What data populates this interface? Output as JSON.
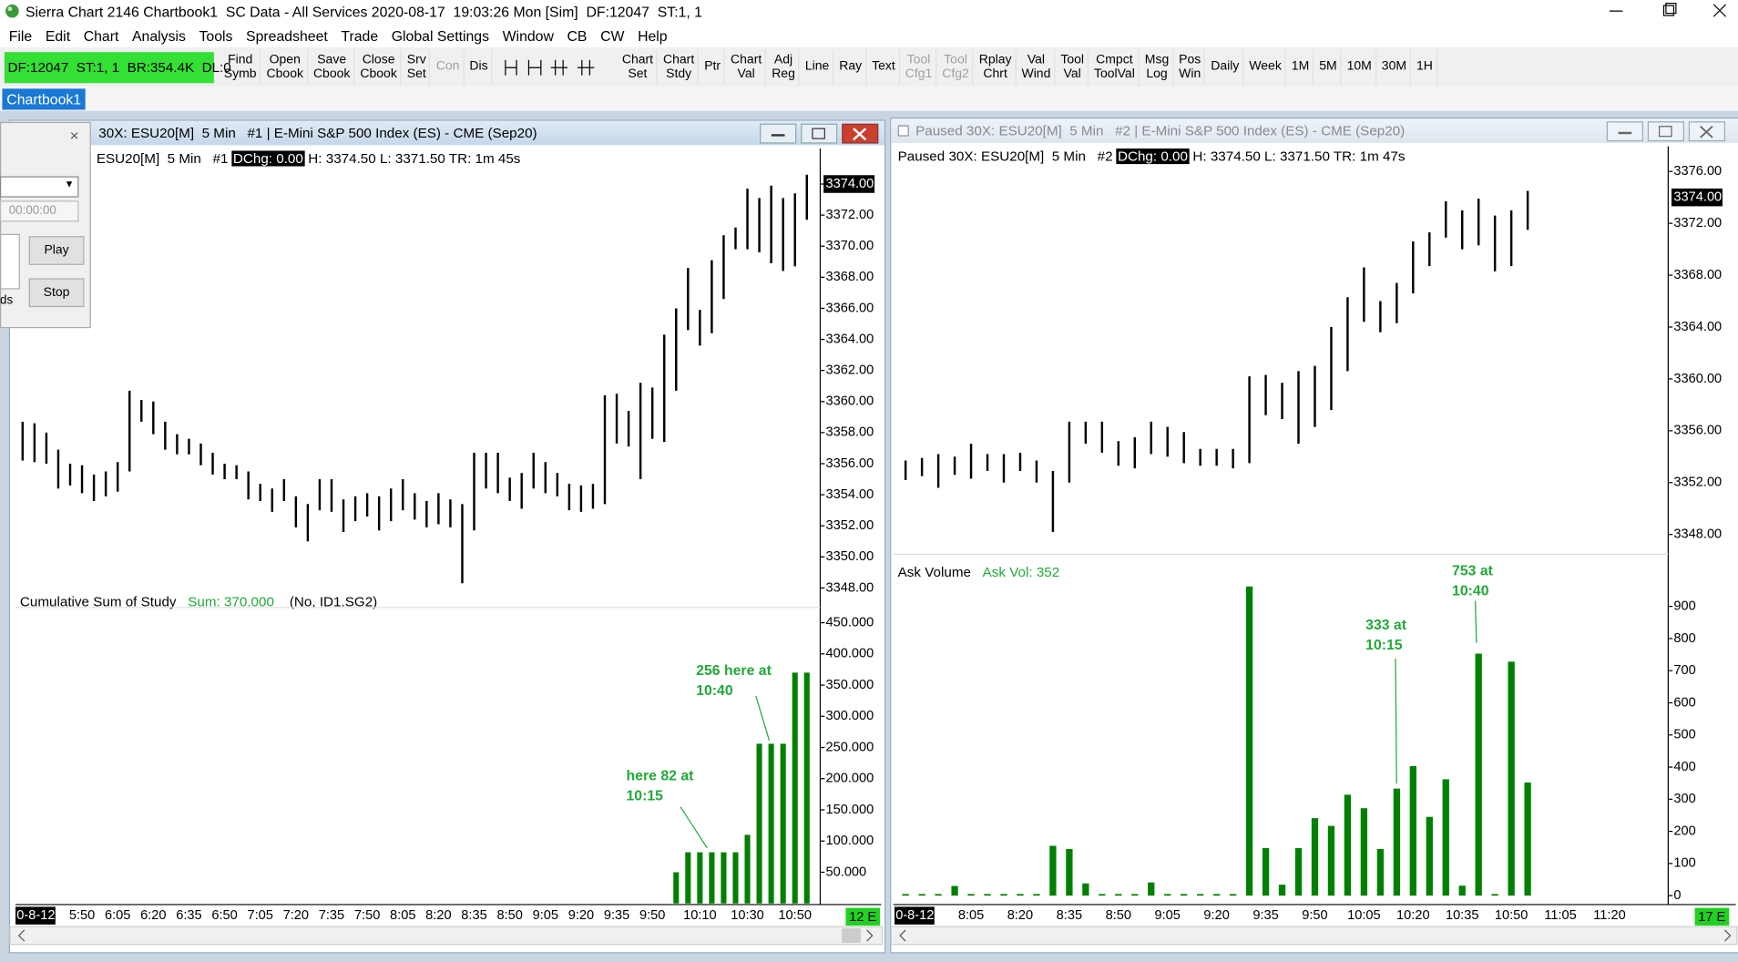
{
  "window": {
    "title": "Sierra Chart 2146 Chartbook1  SC Data - All Services 2020-08-17  19:03:26 Mon [Sim]  DF:12047  ST:1, 1"
  },
  "menu": [
    "File",
    "Edit",
    "Chart",
    "Analysis",
    "Tools",
    "Spreadsheet",
    "Trade",
    "Global Settings",
    "Window",
    "CB",
    "CW",
    "Help"
  ],
  "toolbar": {
    "status": "DF:12047  ST:1, 1  BR:354.4K  DL:0",
    "groups": [
      [
        {
          "lines": [
            "Find",
            "Symb"
          ]
        },
        {
          "lines": [
            "Open",
            "Cbook"
          ]
        },
        {
          "lines": [
            "Save",
            "Cbook"
          ]
        },
        {
          "lines": [
            "Close",
            "Cbook"
          ]
        },
        {
          "lines": [
            "Srv",
            "Set"
          ]
        },
        {
          "lines": [
            "Con"
          ],
          "disabled": true
        },
        {
          "lines": [
            "Dis"
          ]
        }
      ],
      [
        {
          "lines": [
            "Chart",
            "Set"
          ]
        },
        {
          "lines": [
            "Chart",
            "Stdy"
          ]
        },
        {
          "lines": [
            "Ptr"
          ]
        },
        {
          "lines": [
            "Chart",
            "Val"
          ]
        },
        {
          "lines": [
            "Adj",
            "Reg"
          ]
        },
        {
          "lines": [
            "Line"
          ]
        },
        {
          "lines": [
            "Ray"
          ]
        },
        {
          "lines": [
            "Text"
          ]
        },
        {
          "lines": [
            "Tool",
            "Cfg1"
          ],
          "disabled": true
        },
        {
          "lines": [
            "Tool",
            "Cfg2"
          ],
          "disabled": true
        },
        {
          "lines": [
            "Rplay",
            "Chrt"
          ]
        },
        {
          "lines": [
            "Val",
            "Wind"
          ]
        },
        {
          "lines": [
            "Tool",
            "Val"
          ]
        },
        {
          "lines": [
            "Cmpct",
            "ToolVal"
          ]
        },
        {
          "lines": [
            "Msg",
            "Log"
          ]
        },
        {
          "lines": [
            "Pos",
            "Win"
          ]
        },
        {
          "lines": [
            "Daily"
          ]
        },
        {
          "lines": [
            "Week"
          ]
        },
        {
          "lines": [
            "1M"
          ]
        },
        {
          "lines": [
            "5M"
          ]
        },
        {
          "lines": [
            "10M"
          ]
        },
        {
          "lines": [
            "30M"
          ]
        },
        {
          "lines": [
            "1H"
          ]
        }
      ]
    ]
  },
  "tab": "Chartbook1",
  "replay_dialog": {
    "time": "00:00:00",
    "play": "Play",
    "stop": "Stop",
    "fragment": "ds"
  },
  "charts": [
    {
      "title": "30X: ESU20[M]  5 Min   #1 | E-Mini S&P 500 Index (ES) - CME (Sep20)",
      "info": {
        "symbol": "ESU20[M]  5 Min   #1",
        "dchg": "DChg: 0.00",
        "rest": "H: 3374.50 L: 3371.50 TR: 1m 45s"
      },
      "bar_counter": "12 E",
      "categories": [
        "0-8-12",
        null,
        null,
        null,
        null,
        "5:50",
        null,
        null,
        "6:05",
        null,
        null,
        "6:20",
        null,
        null,
        "6:35",
        null,
        null,
        "6:50",
        null,
        null,
        "7:05",
        null,
        null,
        "7:20",
        null,
        null,
        "7:35",
        null,
        null,
        "7:50",
        null,
        null,
        "8:05",
        null,
        null,
        "8:20",
        null,
        null,
        "8:35",
        null,
        null,
        "8:50",
        null,
        null,
        "9:05",
        null,
        null,
        "9:20",
        null,
        null,
        "9:35",
        null,
        null,
        "9:50",
        null,
        null,
        null,
        "10:10",
        null,
        null,
        null,
        "10:30",
        null,
        null,
        null,
        "10:50",
        null
      ],
      "price": {
        "type": "ohlc",
        "color": "#000000",
        "highs": [
          3358.7,
          3358.6,
          3358.0,
          3356.9,
          3356.0,
          3355.9,
          3355.3,
          3355.5,
          3356.1,
          3360.7,
          3360.1,
          3360.0,
          3358.7,
          3357.9,
          3357.6,
          3357.3,
          3356.7,
          3356.0,
          3355.9,
          3355.5,
          3354.7,
          3354.4,
          3355.0,
          3353.9,
          3353.4,
          3355.0,
          3355.0,
          3353.7,
          3353.9,
          3354.1,
          3353.9,
          3354.4,
          3355.0,
          3354.1,
          3353.6,
          3354.1,
          3353.7,
          3353.4,
          3356.7,
          3356.7,
          3356.7,
          3355.1,
          3355.4,
          3356.7,
          3356.1,
          3355.4,
          3354.7,
          3354.6,
          3354.7,
          3360.4,
          3360.5,
          3359.4,
          3361.2,
          3360.9,
          3364.3,
          3366.0,
          3368.6,
          3365.9,
          3369.1,
          3370.7,
          3371.2,
          3373.7,
          3373.1,
          3373.9,
          3373.1,
          3373.4,
          3374.6
        ],
        "lows": [
          3356.2,
          3356.1,
          3356.0,
          3354.4,
          3354.6,
          3354.1,
          3353.6,
          3353.9,
          3354.2,
          3355.5,
          3358.7,
          3357.9,
          3356.9,
          3356.6,
          3356.6,
          3355.9,
          3355.3,
          3355.0,
          3355.0,
          3353.7,
          3353.6,
          3352.9,
          3353.6,
          3351.9,
          3351.0,
          3353.0,
          3352.9,
          3351.6,
          3352.3,
          3352.6,
          3351.7,
          3352.3,
          3353.0,
          3352.4,
          3351.9,
          3352.1,
          3351.9,
          3348.3,
          3351.7,
          3354.4,
          3354.1,
          3353.6,
          3353.1,
          3354.4,
          3354.1,
          3353.9,
          3353.0,
          3352.9,
          3353.1,
          3353.4,
          3357.3,
          3357.1,
          3355.0,
          3357.6,
          3357.4,
          3360.7,
          3364.6,
          3363.6,
          3364.4,
          3366.6,
          3369.8,
          3369.8,
          3369.6,
          3368.9,
          3368.4,
          3368.7,
          3371.7
        ],
        "ylim": [
          3347.6,
          3375
        ],
        "yticks": [
          {
            "value": 3348,
            "label": "3348.00"
          },
          {
            "value": 3350,
            "label": "3350.00"
          },
          {
            "value": 3352,
            "label": "3352.00"
          },
          {
            "value": 3354,
            "label": "3354.00"
          },
          {
            "value": 3356,
            "label": "3356.00"
          },
          {
            "value": 3358,
            "label": "3358.00"
          },
          {
            "value": 3360,
            "label": "3360.00"
          },
          {
            "value": 3362,
            "label": "3362.00"
          },
          {
            "value": 3364,
            "label": "3364.00"
          },
          {
            "value": 3366,
            "label": "3366.00"
          },
          {
            "value": 3368,
            "label": "3368.00"
          },
          {
            "value": 3370,
            "label": "3370.00"
          },
          {
            "value": 3372,
            "label": "3372.00"
          },
          {
            "value": 3374,
            "label": "3374.00"
          }
        ],
        "last": {
          "value": 3374,
          "label": "3374.00"
        }
      },
      "study": {
        "type": "bar",
        "color": "#008000",
        "name": "Cumulative Sum of Study",
        "readout": "Sum: 370.000",
        "source": "(No, ID1.SG2)",
        "values": [
          0,
          0,
          0,
          0,
          0,
          0,
          0,
          0,
          0,
          0,
          0,
          0,
          0,
          0,
          0,
          0,
          0,
          0,
          0,
          0,
          0,
          0,
          0,
          0,
          0,
          0,
          0,
          0,
          0,
          0,
          0,
          0,
          0,
          0,
          0,
          0,
          0,
          0,
          0,
          0,
          0,
          0,
          0,
          0,
          0,
          0,
          0,
          0,
          0,
          0,
          0,
          0,
          0,
          0,
          0,
          50,
          82,
          82,
          82,
          82,
          82,
          110,
          256,
          256,
          256,
          370,
          370
        ],
        "ylim": [
          0,
          462
        ],
        "yticks": [
          {
            "value": 50,
            "label": "50.000"
          },
          {
            "value": 100,
            "label": "100.000"
          },
          {
            "value": 150,
            "label": "150.000"
          },
          {
            "value": 200,
            "label": "200.000"
          },
          {
            "value": 250,
            "label": "250.000"
          },
          {
            "value": 300,
            "label": "300.000"
          },
          {
            "value": 350,
            "label": "350.000"
          },
          {
            "value": 400,
            "label": "400.000"
          },
          {
            "value": 450,
            "label": "450.000"
          }
        ],
        "annotations": [
          [
            "256 here at",
            "10:40"
          ],
          [
            "here 82 at",
            "10:15"
          ]
        ]
      }
    },
    {
      "title": "Paused 30X: ESU20[M]  5 Min   #2 | E-Mini S&P 500 Index (ES) - CME (Sep20)",
      "info": {
        "symbol": "Paused 30X: ESU20[M]  5 Min   #2",
        "dchg": "DChg: 0.00",
        "rest": "H: 3374.50 L: 3371.50 TR: 1m 47s"
      },
      "bar_counter": "17 E",
      "categories": [
        "0-8-12",
        null,
        null,
        null,
        "8:05",
        null,
        null,
        "8:20",
        null,
        null,
        "8:35",
        null,
        null,
        "8:50",
        null,
        null,
        "9:05",
        null,
        null,
        "9:20",
        null,
        null,
        "9:35",
        null,
        null,
        "9:50",
        null,
        null,
        "10:05",
        null,
        null,
        "10:20",
        null,
        null,
        "10:35",
        null,
        null,
        "10:50",
        null,
        null,
        "11:05",
        null,
        null,
        "11:20",
        null,
        null,
        null,
        null
      ],
      "price": {
        "type": "ohlc",
        "color": "#000000",
        "highs": [
          3353.7,
          3353.9,
          3354.2,
          3354.0,
          3355.0,
          3354.2,
          3354.2,
          3354.3,
          3353.7,
          3352.9,
          3356.7,
          3356.7,
          3356.7,
          3355.2,
          3355.5,
          3356.7,
          3356.3,
          3355.9,
          3354.6,
          3354.6,
          3354.6,
          3360.2,
          3360.3,
          3359.7,
          3360.6,
          3361.0,
          3364.0,
          3366.3,
          3368.6,
          3366.0,
          3367.4,
          3370.6,
          3371.3,
          3373.7,
          3373.0,
          3373.9,
          3372.6,
          3373.0,
          3374.5,
          null,
          null,
          null,
          null,
          null,
          null,
          null,
          null,
          null
        ],
        "lows": [
          3352.2,
          3352.5,
          3351.6,
          3352.6,
          3352.3,
          3352.9,
          3352.0,
          3352.9,
          3352.0,
          3348.2,
          3352.0,
          3355.0,
          3354.3,
          3353.3,
          3353.1,
          3354.2,
          3354.0,
          3353.5,
          3353.3,
          3353.3,
          3353.1,
          3353.5,
          3357.2,
          3356.9,
          3355.0,
          3356.3,
          3357.6,
          3360.6,
          3364.4,
          3363.6,
          3364.3,
          3366.6,
          3368.7,
          3370.9,
          3370.0,
          3370.3,
          3368.3,
          3368.7,
          3371.5,
          null,
          null,
          null,
          null,
          null,
          null,
          null,
          null,
          null
        ],
        "ylim": [
          3346.9,
          3376.4
        ],
        "yticks": [
          {
            "value": 3348,
            "label": "3348.00"
          },
          {
            "value": 3352,
            "label": "3352.00"
          },
          {
            "value": 3356,
            "label": "3356.00"
          },
          {
            "value": 3360,
            "label": "3360.00"
          },
          {
            "value": 3364,
            "label": "3364.00"
          },
          {
            "value": 3368,
            "label": "3368.00"
          },
          {
            "value": 3372,
            "label": "3372.00"
          },
          {
            "value": 3376,
            "label": "3376.00"
          }
        ],
        "last": {
          "value": 3374,
          "label": "3374.00"
        }
      },
      "study": {
        "type": "bar",
        "color": "#008000",
        "name": "Ask Volume",
        "readout": "Ask Vol: 352",
        "values": [
          5,
          5,
          5,
          30,
          5,
          5,
          5,
          5,
          5,
          155,
          145,
          38,
          5,
          5,
          5,
          41,
          5,
          5,
          5,
          5,
          5,
          962,
          148,
          34,
          148,
          241,
          217,
          314,
          272,
          145,
          333,
          403,
          245,
          362,
          31,
          753,
          5,
          728,
          352,
          null,
          null,
          null,
          null,
          null,
          null,
          null,
          null,
          null
        ],
        "ylim": [
          -14,
          1045
        ],
        "yticks": [
          0,
          100,
          200,
          300,
          400,
          500,
          600,
          700,
          800,
          900
        ],
        "annotations": [
          [
            "333 at",
            "10:15"
          ],
          [
            "753 at",
            "10:40"
          ]
        ]
      }
    }
  ]
}
